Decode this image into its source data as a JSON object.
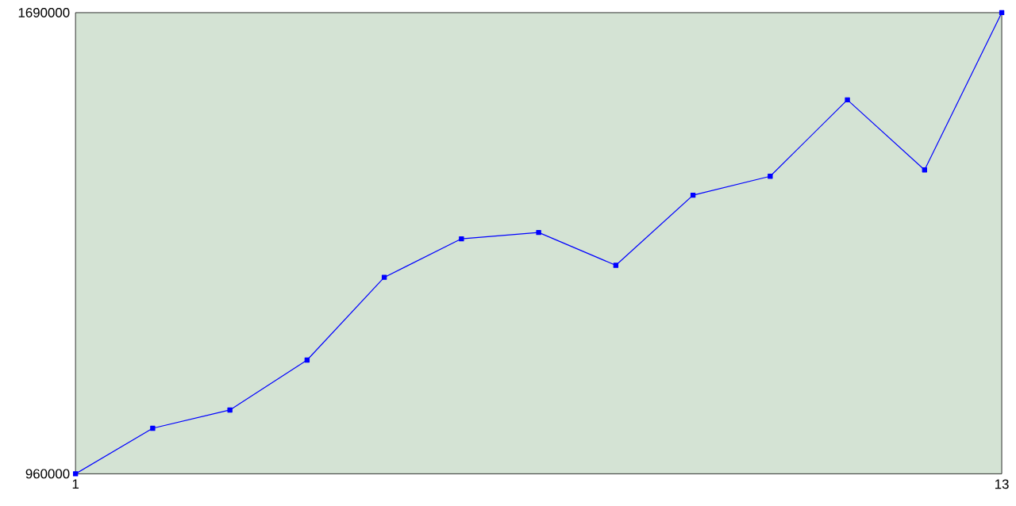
{
  "chart_data": {
    "type": "line",
    "x": [
      1,
      2,
      3,
      4,
      5,
      6,
      7,
      8,
      9,
      10,
      11,
      12,
      13
    ],
    "series": [
      {
        "color": "#0000ff",
        "values": [
          960000,
          1032000,
          1061000,
          1140000,
          1271000,
          1332000,
          1342000,
          1290000,
          1401000,
          1431000,
          1552000,
          1441000,
          1690000
        ]
      }
    ],
    "xlim": [
      1,
      13
    ],
    "ylim": [
      960000,
      1690000
    ],
    "xticks": [
      1,
      13
    ],
    "yticks": [
      960000,
      1690000
    ],
    "marker": "square",
    "line_style": "solid",
    "grid": false
  }
}
